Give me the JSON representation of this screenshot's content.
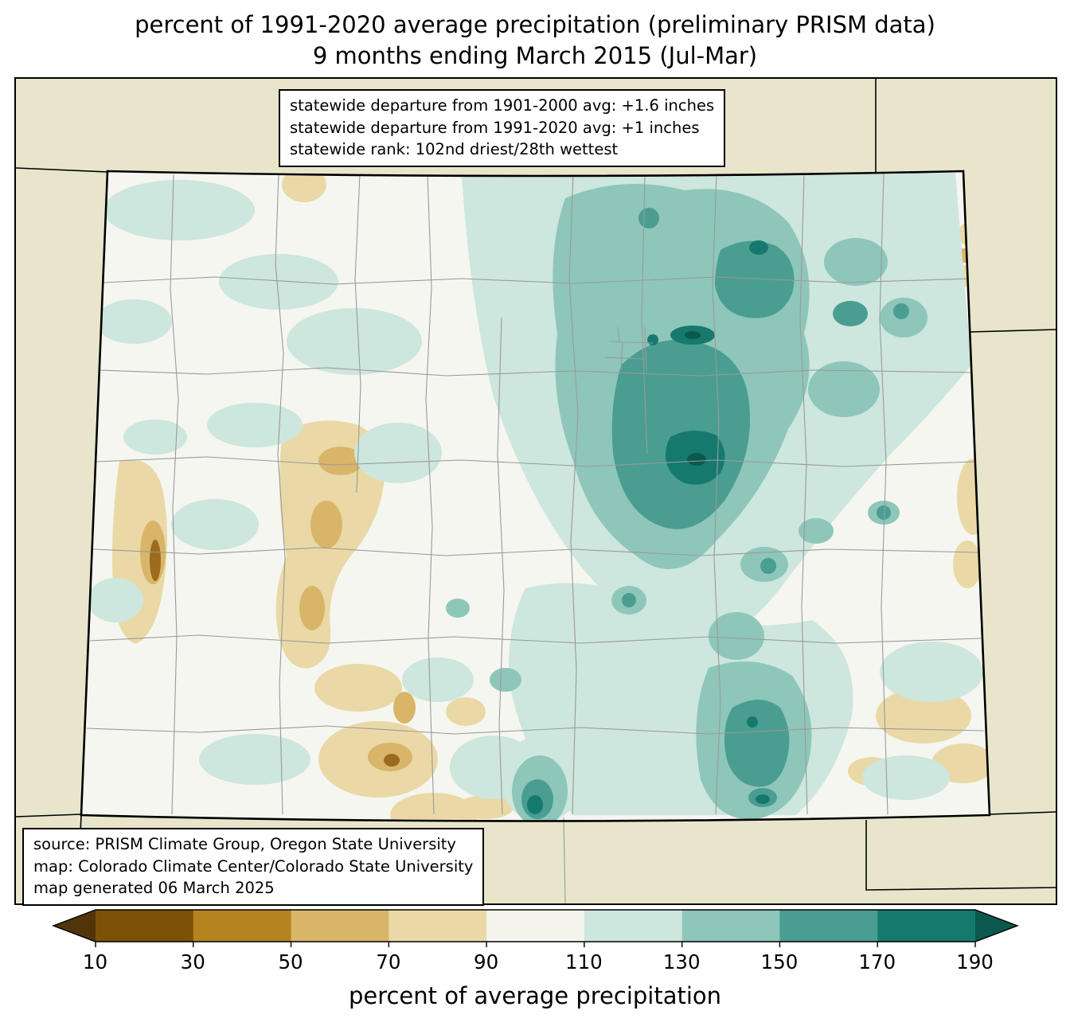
{
  "title": {
    "line1": "percent of 1991-2020 average precipitation (preliminary PRISM data)",
    "line2": "9 months ending March 2015 (Jul-Mar)"
  },
  "stats_box": {
    "lines": [
      "statewide departure from 1901-2000 avg: +1.6 inches",
      "statewide departure from 1991-2020 avg: +1 inches",
      "statewide rank: 102nd driest/28th wettest"
    ]
  },
  "source_box": {
    "lines": [
      "source: PRISM Climate Group, Oregon State University",
      "map: Colorado Climate Center/Colorado State University",
      "map generated 06 March 2025"
    ]
  },
  "colorbar": {
    "caption": "percent of average precipitation",
    "ticks": [
      10,
      30,
      50,
      70,
      90,
      110,
      130,
      150,
      170,
      190
    ],
    "segment_colors": [
      "#7d5108",
      "#b5831f",
      "#d9b569",
      "#ead9a6",
      "#f5f5ee",
      "#cde6de",
      "#8ec6ba",
      "#4a9d91",
      "#157a6d"
    ],
    "under_arrow_color": "#52340a",
    "over_arrow_color": "#0b584e"
  },
  "map": {
    "region": "Colorado",
    "colors": {
      "outside": "#e9e5cb",
      "base": "#f5f6f0",
      "teal1": "#cde6de",
      "teal2": "#8ec6ba",
      "teal3": "#4a9d91",
      "teal4": "#157a6d",
      "teal5": "#0b584e",
      "tan1": "#ead9a6",
      "tan2": "#d9b569",
      "tan3": "#9c6b1d",
      "county": "#9a9a9a",
      "border": "#000000"
    }
  }
}
